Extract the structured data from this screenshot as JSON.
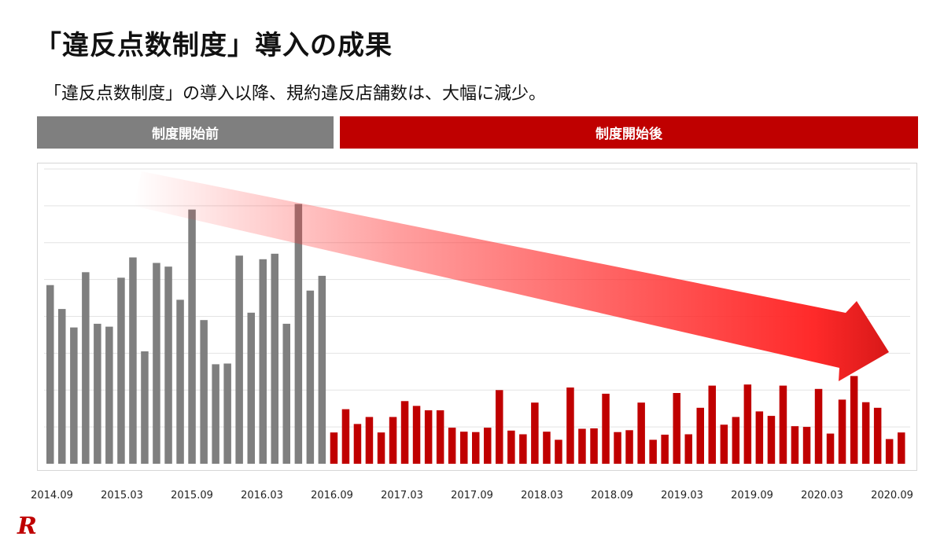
{
  "title": "「違反点数制度」導入の成果",
  "subtitle": "「違反点数制度」の導入以降、規約違反店舗数は、大幅に減少。",
  "periods": {
    "before": {
      "label": "制度開始前",
      "color": "#7f7f7f"
    },
    "after": {
      "label": "制度開始後",
      "color": "#bf0000"
    }
  },
  "brand_logo": "R",
  "colors": {
    "bar_before": "#7f7f7f",
    "bar_after": "#c00000",
    "arrow": "#ff2a2a",
    "grid": "#e3e3e3"
  },
  "chart_data": {
    "type": "bar",
    "title": "",
    "xlabel": "",
    "ylabel": "",
    "y_axis_labels_shown": false,
    "grid": true,
    "ylim": [
      0,
      8
    ],
    "x_tick_labels": [
      "2014.09",
      "2015.03",
      "2015.09",
      "2016.03",
      "2016.09",
      "2017.03",
      "2017.09",
      "2018.03",
      "2018.09",
      "2019.03",
      "2019.09",
      "2020.03",
      "2020.09"
    ],
    "series": [
      {
        "period": "before",
        "values": [
          4.85,
          4.2,
          3.7,
          5.2,
          3.8,
          3.72,
          5.05,
          5.6,
          3.05,
          5.45,
          5.35,
          4.45,
          6.9,
          3.9,
          2.7,
          2.72,
          5.65,
          4.1,
          5.55,
          5.7,
          3.8,
          7.05,
          4.7,
          5.1
        ]
      },
      {
        "period": "after",
        "values": [
          0.85,
          1.48,
          1.08,
          1.27,
          0.85,
          1.27,
          1.7,
          1.57,
          1.45,
          1.45,
          0.98,
          0.87,
          0.86,
          0.98,
          2.0,
          0.9,
          0.8,
          1.66,
          0.87,
          0.65,
          2.07,
          0.95,
          0.96,
          1.9,
          0.86,
          0.91,
          1.66,
          0.65,
          0.79,
          1.92,
          0.8,
          1.52,
          2.12,
          1.06,
          1.27,
          2.15,
          1.42,
          1.3,
          2.12,
          1.02,
          1.0,
          2.03,
          0.82,
          1.74,
          2.38,
          1.67,
          1.52,
          0.67,
          0.85
        ]
      }
    ],
    "annotation": "trend arrow pointing downward from before-period toward after-period"
  }
}
